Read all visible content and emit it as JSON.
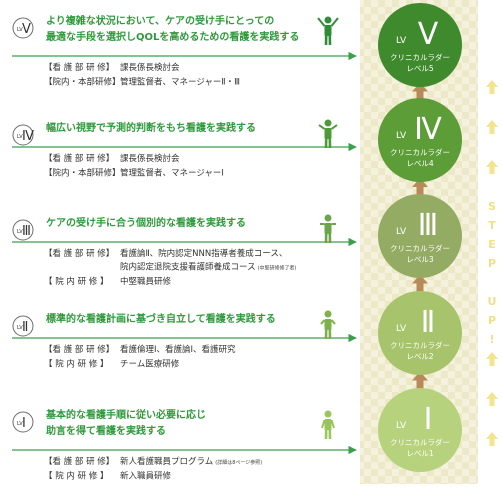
{
  "step_up": "STEP UP!",
  "levels": [
    {
      "badge": "LV",
      "numeral": "Ⅴ",
      "heading": [
        "より複雑な状況において、ケアの受け手にとっての",
        "最適な手段を選択しQOLを高めるための看護を実践する"
      ],
      "trainings": [
        {
          "label": "【看 護 部 研 修】",
          "text": [
            "課長係長検討会"
          ]
        },
        {
          "label": "【院内・本部研修】",
          "text": [
            "管理監督者、マネージャーⅡ・Ⅲ"
          ]
        }
      ],
      "ladder": {
        "lv": "LV",
        "numeral": "Ⅴ",
        "title": "クリニカルラダー",
        "level": "レベル5"
      }
    },
    {
      "badge": "LV",
      "numeral": "Ⅳ",
      "heading": [
        "幅広い視野で予測的判断をもち看護を実践する"
      ],
      "trainings": [
        {
          "label": "【看 護 部 研 修】",
          "text": [
            "課長係長検討会"
          ]
        },
        {
          "label": "【院内・本部研修】",
          "text": [
            "管理監督者、マネージャーⅠ"
          ]
        }
      ],
      "ladder": {
        "lv": "LV",
        "numeral": "Ⅳ",
        "title": "クリニカルラダー",
        "level": "レベル4"
      }
    },
    {
      "badge": "LV",
      "numeral": "Ⅲ",
      "heading": [
        "ケアの受け手に合う個別的な看護を実践する"
      ],
      "trainings": [
        {
          "label": "【看 護 部 研 修】",
          "text": [
            "看護論Ⅱ、院内認定NNN指導者養成コース、",
            "院内認定退院支援看護師養成コース"
          ],
          "note": "(中堅研修修了者)"
        },
        {
          "label": "【 院 内 研 修 】",
          "text": [
            "中堅職員研修"
          ]
        }
      ],
      "ladder": {
        "lv": "LV",
        "numeral": "Ⅲ",
        "title": "クリニカルラダー",
        "level": "レベル3"
      }
    },
    {
      "badge": "LV",
      "numeral": "Ⅱ",
      "heading": [
        "標準的な看護計画に基づき自立して看護を実践する"
      ],
      "trainings": [
        {
          "label": "【看 護 部 研 修】",
          "text": [
            "看護倫理Ⅰ、看護論Ⅰ、看護研究"
          ]
        },
        {
          "label": "【 院 内 研 修 】",
          "text": [
            "チーム医療研修"
          ]
        }
      ],
      "ladder": {
        "lv": "LV",
        "numeral": "Ⅱ",
        "title": "クリニカルラダー",
        "level": "レベル2"
      }
    },
    {
      "badge": "LV",
      "numeral": "Ⅰ",
      "heading": [
        "基本的な看護手順に従い必要に応じ",
        "助言を得て看護を実践する"
      ],
      "trainings": [
        {
          "label": "【看 護 部 研 修】",
          "text": [
            "新人看護職員プログラム"
          ],
          "note": "(詳細は8ページ参照)"
        },
        {
          "label": "【 院 内 研 修 】",
          "text": [
            "新入職員研修"
          ]
        }
      ],
      "ladder": {
        "lv": "LV",
        "numeral": "Ⅰ",
        "title": "クリニカルラダー",
        "level": "レベル1"
      }
    }
  ]
}
